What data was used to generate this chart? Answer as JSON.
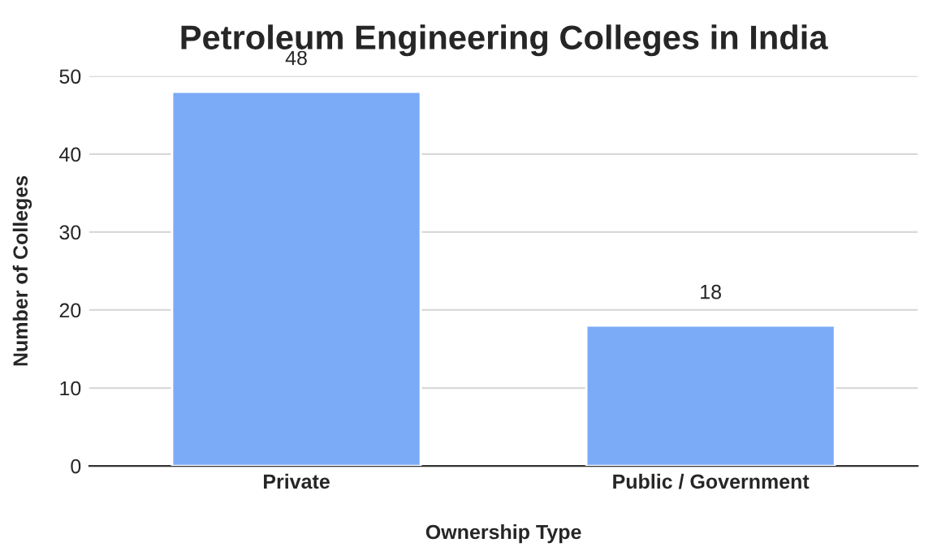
{
  "chart_data": {
    "type": "bar",
    "title": "Petroleum Engineering Colleges in India",
    "xlabel": "Ownership Type",
    "ylabel": "Number of Colleges",
    "categories": [
      "Private",
      "Public / Government"
    ],
    "values": [
      48,
      18
    ],
    "color": "#7baaf7",
    "ylim": [
      0,
      50
    ],
    "yticks": [
      0,
      10,
      20,
      30,
      40,
      50
    ],
    "grid": "y",
    "data_labels": true
  }
}
